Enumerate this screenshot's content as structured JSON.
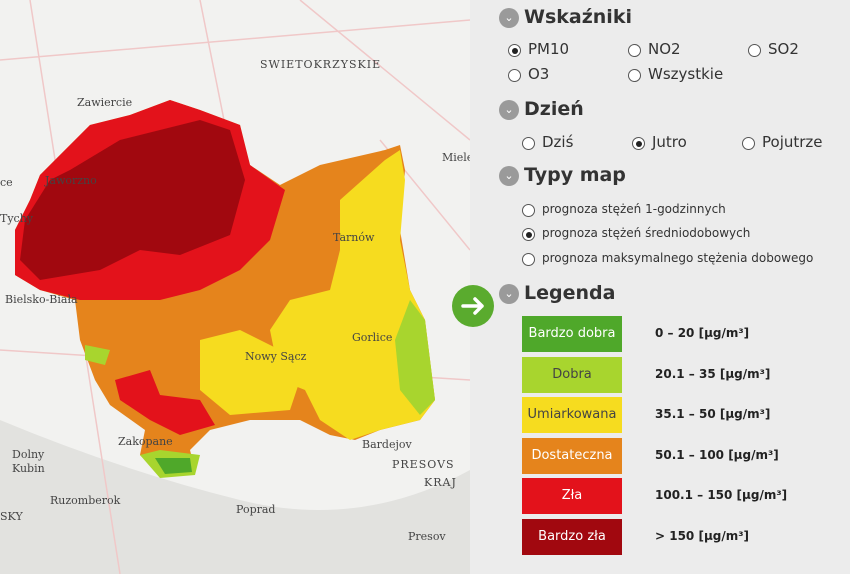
{
  "map": {
    "labels": [
      "Zawiercie",
      "SWIETOKRZYSKIE",
      "Mielec",
      "Jaworzno",
      "ce",
      "Tychy",
      "Bielsko-Biała",
      "Tarnów",
      "Gorlice",
      "Nowy Sącz",
      "Zakopane",
      "Dolny",
      "Kubin",
      "Ruzomberok",
      "Poprad",
      "Bardejov",
      "PRESOVS",
      "KRAJ",
      "Presov",
      "SKY"
    ]
  },
  "panel": {
    "sections": [
      {
        "title": "Wskaźniki",
        "options": [
          {
            "label": "PM10",
            "selected": true
          },
          {
            "label": "NO2",
            "selected": false
          },
          {
            "label": "SO2",
            "selected": false
          },
          {
            "label": "O3",
            "selected": false
          },
          {
            "label": "Wszystkie",
            "selected": false
          }
        ]
      },
      {
        "title": "Dzień",
        "options": [
          {
            "label": "Dziś",
            "selected": false
          },
          {
            "label": "Jutro",
            "selected": true
          },
          {
            "label": "Pojutrze",
            "selected": false
          }
        ]
      },
      {
        "title": "Typy map",
        "options": [
          {
            "label": "prognoza stężeń 1-godzinnych",
            "selected": false
          },
          {
            "label": "prognoza stężeń średniodobowych",
            "selected": true
          },
          {
            "label": "prognoza maksymalnego stężenia dobowego",
            "selected": false
          }
        ]
      }
    ],
    "legend": {
      "title": "Legenda",
      "items": [
        {
          "name": "Bardzo dobra",
          "color": "#4fa82a",
          "range": "0 – 20 [µg/m³]"
        },
        {
          "name": "Dobra",
          "color": "#a8d52e",
          "range": "20.1 – 35 [µg/m³]"
        },
        {
          "name": "Umiarkowana",
          "color": "#f6dc1f",
          "range": "35.1 – 50 [µg/m³]"
        },
        {
          "name": "Dostateczna",
          "color": "#e5841c",
          "range": "50.1 – 100 [µg/m³]"
        },
        {
          "name": "Zła",
          "color": "#e3121b",
          "range": "100.1 – 150 [µg/m³]"
        },
        {
          "name": "Bardzo zła",
          "color": "#a1080f",
          "range": "> 150 [µg/m³]"
        }
      ]
    }
  }
}
